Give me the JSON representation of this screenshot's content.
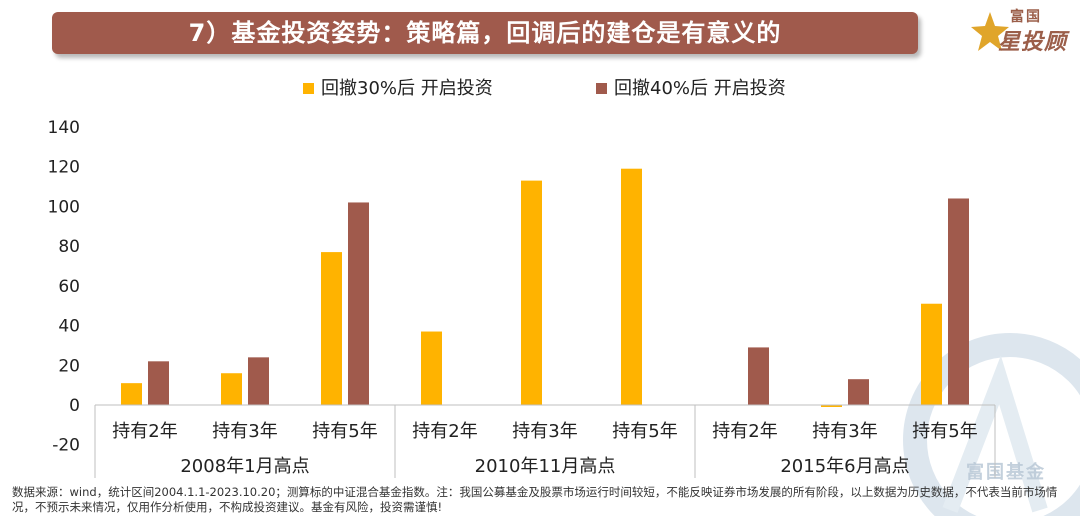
{
  "header": {
    "title": "7）基金投资姿势：策略篇，回调后的建仓是有意义的"
  },
  "logo": {
    "top_text": "富国",
    "main_text": "星投顾",
    "icon": "star-logo-icon"
  },
  "watermark": {
    "text": "富国基金",
    "icon": "fund-company-watermark-icon"
  },
  "colors": {
    "banner": "#a05a4c",
    "series_30": "#ffb300",
    "series_40": "#a05a4c"
  },
  "chart_data": {
    "type": "bar",
    "title": "",
    "xlabel": "",
    "ylabel": "",
    "ylim": [
      -20,
      140
    ],
    "yticks": [
      -20,
      0,
      20,
      40,
      60,
      80,
      100,
      120,
      140
    ],
    "grid": false,
    "legend_position": "top-center",
    "groups": [
      "2008年1月高点",
      "2010年11月高点",
      "2015年6月高点"
    ],
    "categories": [
      "持有2年",
      "持有3年",
      "持有5年",
      "持有2年",
      "持有3年",
      "持有5年",
      "持有2年",
      "持有3年",
      "持有5年"
    ],
    "series": [
      {
        "name": "回撤30%后  开启投资",
        "color": "#ffb300",
        "values": [
          11,
          16,
          77,
          37,
          113,
          119,
          null,
          -1,
          51
        ]
      },
      {
        "name": "回撤40%后  开启投资",
        "color": "#a05a4c",
        "values": [
          22,
          24,
          102,
          null,
          null,
          null,
          29,
          13,
          104
        ]
      }
    ]
  },
  "footnote": "数据来源：wind，统计区间2004.1.1-2023.10.20；测算标的中证混合基金指数。注：我国公募基金及股票市场运行时间较短，不能反映证券市场发展的所有阶段，以上数据为历史数据，不代表当前市场情况，不预示未来情况，仅用作分析使用，不构成投资建议。基金有风险，投资需谨慎!"
}
